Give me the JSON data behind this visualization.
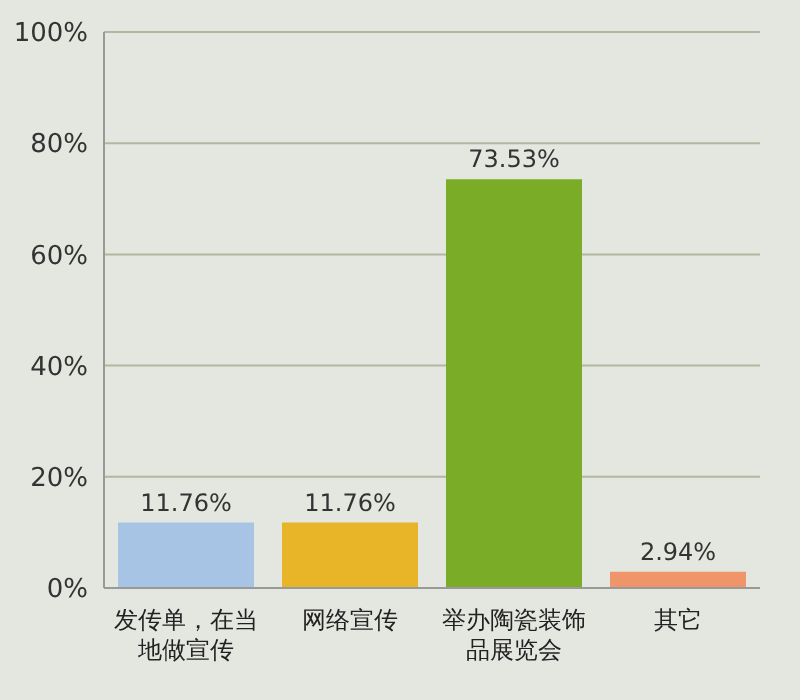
{
  "chart_data": {
    "type": "bar",
    "categories": [
      "发传单，在当地做宣传",
      "网络宣传",
      "举办陶瓷装饰品展览会",
      "其它"
    ],
    "values": [
      11.76,
      11.76,
      73.53,
      2.94
    ],
    "colors": [
      "#a8c4e4",
      "#e8b428",
      "#7aac28",
      "#f0946a"
    ],
    "value_labels": [
      "11.76%",
      "11.76%",
      "73.53%",
      "2.94%"
    ],
    "ylim": [
      0,
      100
    ],
    "yticks": [
      {
        "value": 0,
        "label": "0%"
      },
      {
        "value": 20,
        "label": "20%"
      },
      {
        "value": 40,
        "label": "40%"
      },
      {
        "value": 60,
        "label": "60%"
      },
      {
        "value": 80,
        "label": "80%"
      },
      {
        "value": 100,
        "label": "100%"
      }
    ],
    "grid": "y"
  }
}
